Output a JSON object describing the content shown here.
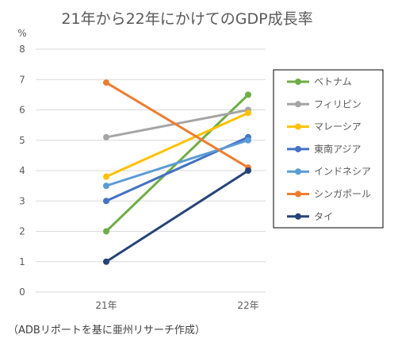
{
  "chart_data": {
    "type": "line",
    "title": "21年から22年にかけてのGDP成長率",
    "unit": "%",
    "x": [
      "21年",
      "22年"
    ],
    "ylim": [
      0,
      8
    ],
    "yticks": [
      0,
      1,
      2,
      3,
      4,
      5,
      6,
      7,
      8
    ],
    "grid": true,
    "legend_position": "right",
    "series": [
      {
        "name": "ベトナム",
        "values": [
          2.0,
          6.5
        ],
        "color": "#70ad47"
      },
      {
        "name": "フィリピン",
        "values": [
          5.1,
          6.0
        ],
        "color": "#a5a5a5"
      },
      {
        "name": "マレーシア",
        "values": [
          3.8,
          5.9
        ],
        "color": "#ffc000"
      },
      {
        "name": "東南アジア",
        "values": [
          3.0,
          5.1
        ],
        "color": "#4472c4"
      },
      {
        "name": "インドネシア",
        "values": [
          3.5,
          5.0
        ],
        "color": "#5b9bd5"
      },
      {
        "name": "シンガポール",
        "values": [
          6.9,
          4.1
        ],
        "color": "#ed7d31"
      },
      {
        "name": "タイ",
        "values": [
          1.0,
          4.0
        ],
        "color": "#264478"
      }
    ],
    "source": "（ADBリポートを基に亜州リサーチ作成）"
  }
}
